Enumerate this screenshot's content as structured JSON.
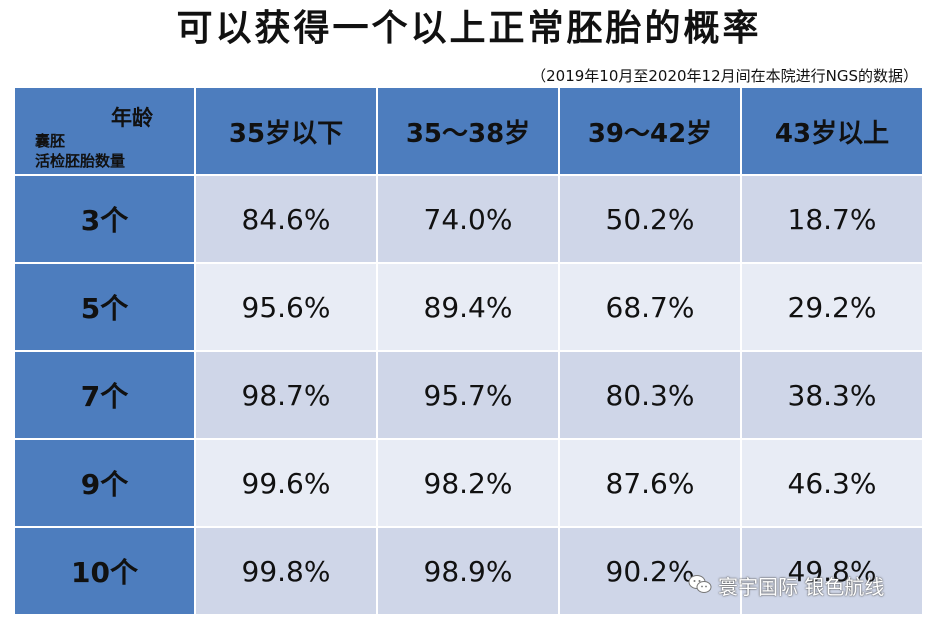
{
  "title": "可以获得一个以上正常胚胎的概率",
  "subtitle": "（2019年10月至2020年12月间在本院进行NGS的数据）",
  "table": {
    "corner": {
      "age_label": "年龄",
      "row_label_line1": "囊胚",
      "row_label_line2": "活检胚胎数量"
    },
    "columns": [
      "35岁以下",
      "35～38岁",
      "39～42岁",
      "43岁以上"
    ],
    "rows": [
      {
        "label": "3个",
        "values": [
          "84.6%",
          "74.0%",
          "50.2%",
          "18.7%"
        ]
      },
      {
        "label": "5个",
        "values": [
          "95.6%",
          "89.4%",
          "68.7%",
          "29.2%"
        ]
      },
      {
        "label": "7个",
        "values": [
          "98.7%",
          "95.7%",
          "80.3%",
          "38.3%"
        ]
      },
      {
        "label": "9个",
        "values": [
          "99.6%",
          "98.2%",
          "87.6%",
          "46.3%"
        ]
      },
      {
        "label": "10个",
        "values": [
          "99.8%",
          "98.9%",
          "90.2%",
          "49.8%"
        ]
      }
    ]
  },
  "watermark": {
    "text": "寰宇国际 银色航线",
    "icon": "wechat-icon"
  },
  "colors": {
    "header_blue": "#4d7dbe",
    "row_dark": "#cfd6e8",
    "row_light": "#e8ecf5"
  }
}
